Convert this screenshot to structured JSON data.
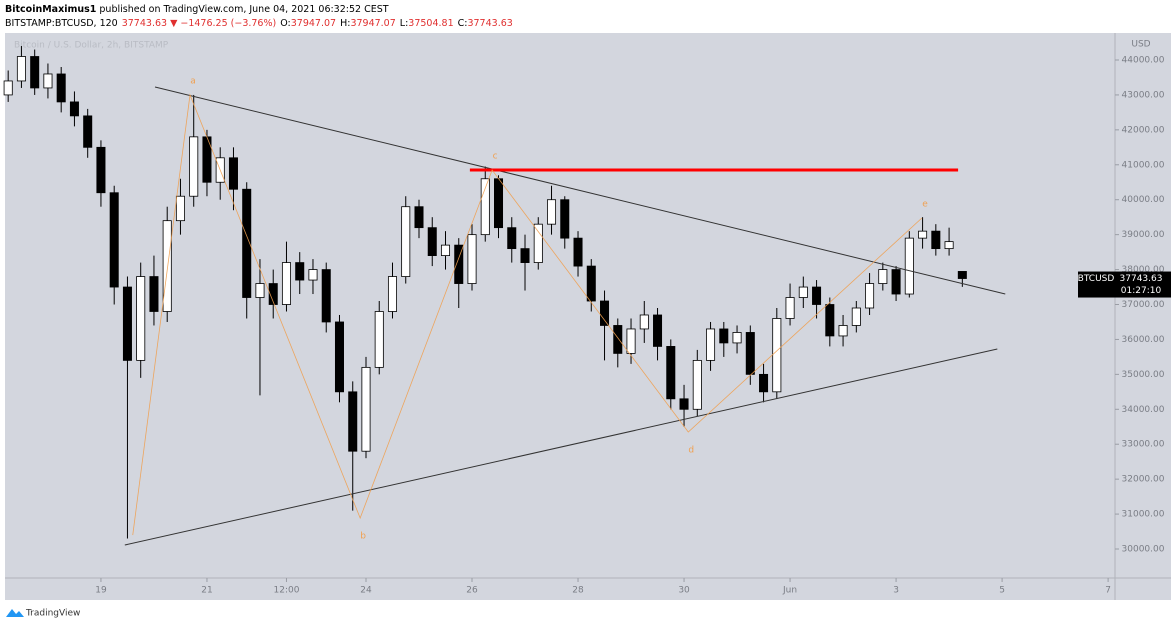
{
  "chart_data": {
    "type": "candlestick",
    "author": "BitcoinMaximus1",
    "published": "published on TradingView.com, June 04, 2021 06:32:52 CEST",
    "symbol": "BITSTAMP:BTCUSD, 120",
    "last_price": 37743.63,
    "change_label": "▼ −1476.25 (−3.76%)",
    "ohlc_labels": [
      {
        "label": "O:",
        "value": 37947.07
      },
      {
        "label": "H:",
        "value": 37947.07
      },
      {
        "label": "L:",
        "value": 37504.81
      },
      {
        "label": "C:",
        "value": 37743.63
      }
    ],
    "watermark": "Bitcoin / U.S. Dollar, 2h, BITSTAMP",
    "currency": "USD",
    "price_label": {
      "symbol": "BTCUSD",
      "countdown": "01:27:10"
    },
    "footer": "TradingView",
    "up_color": "#ffffff",
    "down_color": "#000000",
    "xlim": [
      17.19,
      38.13
    ],
    "ylim": [
      29170,
      44773
    ],
    "xticks": [
      19,
      21,
      {
        "value": 22.5,
        "label": "12:00"
      },
      24,
      26,
      28,
      30,
      {
        "value": 32,
        "label": "Jun"
      },
      {
        "value": 34,
        "label": "3"
      },
      {
        "value": 36,
        "label": "5"
      },
      {
        "value": 38,
        "label": "7"
      }
    ],
    "yticks": [
      {
        "value": 30000,
        "label": "30000.00"
      },
      {
        "value": 31000,
        "label": "31000.00"
      },
      {
        "value": 32000,
        "label": "32000.00"
      },
      {
        "value": 33000,
        "label": "33000.00"
      },
      {
        "value": 34000,
        "label": "34000.00"
      },
      {
        "value": 35000,
        "label": "35000.00"
      },
      {
        "value": 36000,
        "label": "36000.00"
      },
      {
        "value": 37000,
        "label": "37000.00"
      },
      {
        "value": 38000,
        "label": "38000.00"
      },
      {
        "value": 39000,
        "label": "39000.00"
      },
      {
        "value": 40000,
        "label": "40000.00"
      },
      {
        "value": 41000,
        "label": "41000.00"
      },
      {
        "value": 42000,
        "label": "42000.00"
      },
      {
        "value": 43000,
        "label": "43000.00"
      },
      {
        "value": 44000,
        "label": "44000.00"
      }
    ],
    "grid": false,
    "x": [
      17.25,
      17.5,
      17.75,
      18,
      18.25,
      18.5,
      18.75,
      19,
      19.25,
      19.5,
      19.75,
      20,
      20.25,
      20.5,
      20.75,
      21,
      21.25,
      21.5,
      21.75,
      22,
      22.25,
      22.5,
      22.75,
      23,
      23.25,
      23.5,
      23.75,
      24,
      24.25,
      24.5,
      24.75,
      25,
      25.25,
      25.5,
      25.75,
      26,
      26.25,
      26.5,
      26.75,
      27,
      27.25,
      27.5,
      27.75,
      28,
      28.25,
      28.5,
      28.75,
      29,
      29.25,
      29.5,
      29.75,
      30,
      30.25,
      30.5,
      30.75,
      31,
      31.25,
      31.5,
      31.75,
      32,
      32.25,
      32.5,
      32.75,
      33,
      33.25,
      33.5,
      33.75,
      34,
      34.25,
      34.5,
      34.75,
      35,
      35.25
    ],
    "open": [
      43000,
      43400,
      44100,
      43200,
      43600,
      42800,
      42400,
      41500,
      40200,
      37500,
      35400,
      37800,
      36800,
      39400,
      40100,
      41800,
      40500,
      41200,
      40300,
      37200,
      37600,
      37000,
      38200,
      37700,
      38000,
      36500,
      34500,
      32800,
      35200,
      36800,
      37800,
      39800,
      39200,
      38400,
      38700,
      37600,
      39000,
      40600,
      39200,
      38600,
      38200,
      39300,
      40000,
      38900,
      38100,
      37100,
      36400,
      35600,
      36300,
      36700,
      35800,
      34300,
      34000,
      35400,
      36300,
      35900,
      36200,
      35000,
      34500,
      36600,
      37200,
      37500,
      37000,
      36100,
      36400,
      36900,
      37600,
      38000,
      37300,
      38900,
      39100,
      38600,
      37947.07
    ],
    "high": [
      43700,
      44400,
      44300,
      43900,
      43800,
      43100,
      42600,
      41700,
      40400,
      37800,
      38200,
      38400,
      39800,
      40600,
      43000,
      42000,
      41500,
      41500,
      40500,
      38300,
      38000,
      38800,
      38500,
      38300,
      38200,
      36700,
      34800,
      35500,
      37100,
      38200,
      40100,
      40000,
      39500,
      39100,
      38900,
      39300,
      40950,
      40700,
      39500,
      39000,
      39500,
      40400,
      40100,
      39100,
      38300,
      37400,
      36600,
      36600,
      37100,
      36900,
      36000,
      34700,
      35700,
      36500,
      36500,
      36400,
      36400,
      35300,
      36900,
      37600,
      37800,
      37700,
      37200,
      36700,
      37100,
      37900,
      38200,
      38100,
      39100,
      39500,
      39300,
      39200,
      37947.07
    ],
    "low": [
      42800,
      43200,
      43000,
      42900,
      42500,
      42100,
      41200,
      39800,
      37000,
      30300,
      34900,
      36400,
      36500,
      39000,
      39800,
      40100,
      40000,
      39700,
      36600,
      34400,
      36600,
      36800,
      37300,
      37300,
      36200,
      34200,
      31100,
      32600,
      35000,
      36600,
      37600,
      38900,
      38100,
      38000,
      36900,
      37400,
      38800,
      38900,
      38200,
      37400,
      38000,
      39000,
      38600,
      37800,
      36800,
      35400,
      35200,
      35300,
      35900,
      35400,
      34000,
      33500,
      33800,
      35100,
      35500,
      35600,
      34700,
      34200,
      34300,
      36400,
      36900,
      36600,
      35800,
      35800,
      36200,
      36700,
      37400,
      37100,
      37200,
      38600,
      38400,
      38400,
      37504.81
    ],
    "close": [
      43400,
      44100,
      43200,
      43600,
      42800,
      42400,
      41500,
      40200,
      37500,
      35400,
      37800,
      36800,
      39400,
      40100,
      41800,
      40500,
      41200,
      40300,
      37200,
      37600,
      37000,
      38200,
      37700,
      38000,
      36500,
      34500,
      32800,
      35200,
      36800,
      37800,
      39800,
      39200,
      38400,
      38700,
      37600,
      39000,
      40600,
      39200,
      38600,
      38200,
      39300,
      40000,
      38900,
      38100,
      37100,
      36400,
      35600,
      36300,
      36700,
      35800,
      34300,
      34000,
      35400,
      36300,
      35900,
      36200,
      35000,
      34500,
      36600,
      37200,
      37500,
      37000,
      36100,
      36400,
      36900,
      37600,
      38000,
      37300,
      38900,
      39100,
      38600,
      38800,
      37743.63
    ],
    "drawings": [
      {
        "color": "#333333",
        "x": [
          20.02,
          36.06
        ],
        "y": [
          43227,
          37300
        ]
      },
      {
        "color": "#333333",
        "x": [
          19.45,
          35.91
        ],
        "y": [
          30114,
          35726
        ]
      },
      {
        "color": "#ff0000",
        "x": [
          25.96,
          35.17
        ],
        "y": [
          40851,
          40851
        ]
      }
    ],
    "wave_color": "#f0a050",
    "wave": [
      {
        "x": 19.6,
        "y": 30400
      },
      {
        "x": 20.68,
        "y": 43000,
        "label": "a"
      },
      {
        "x": 23.89,
        "y": 30887,
        "label": "b"
      },
      {
        "x": 26.38,
        "y": 40850,
        "label": "c"
      },
      {
        "x": 30.08,
        "y": 33350,
        "label": "d"
      },
      {
        "x": 34.49,
        "y": 39480,
        "label": "e"
      }
    ]
  }
}
